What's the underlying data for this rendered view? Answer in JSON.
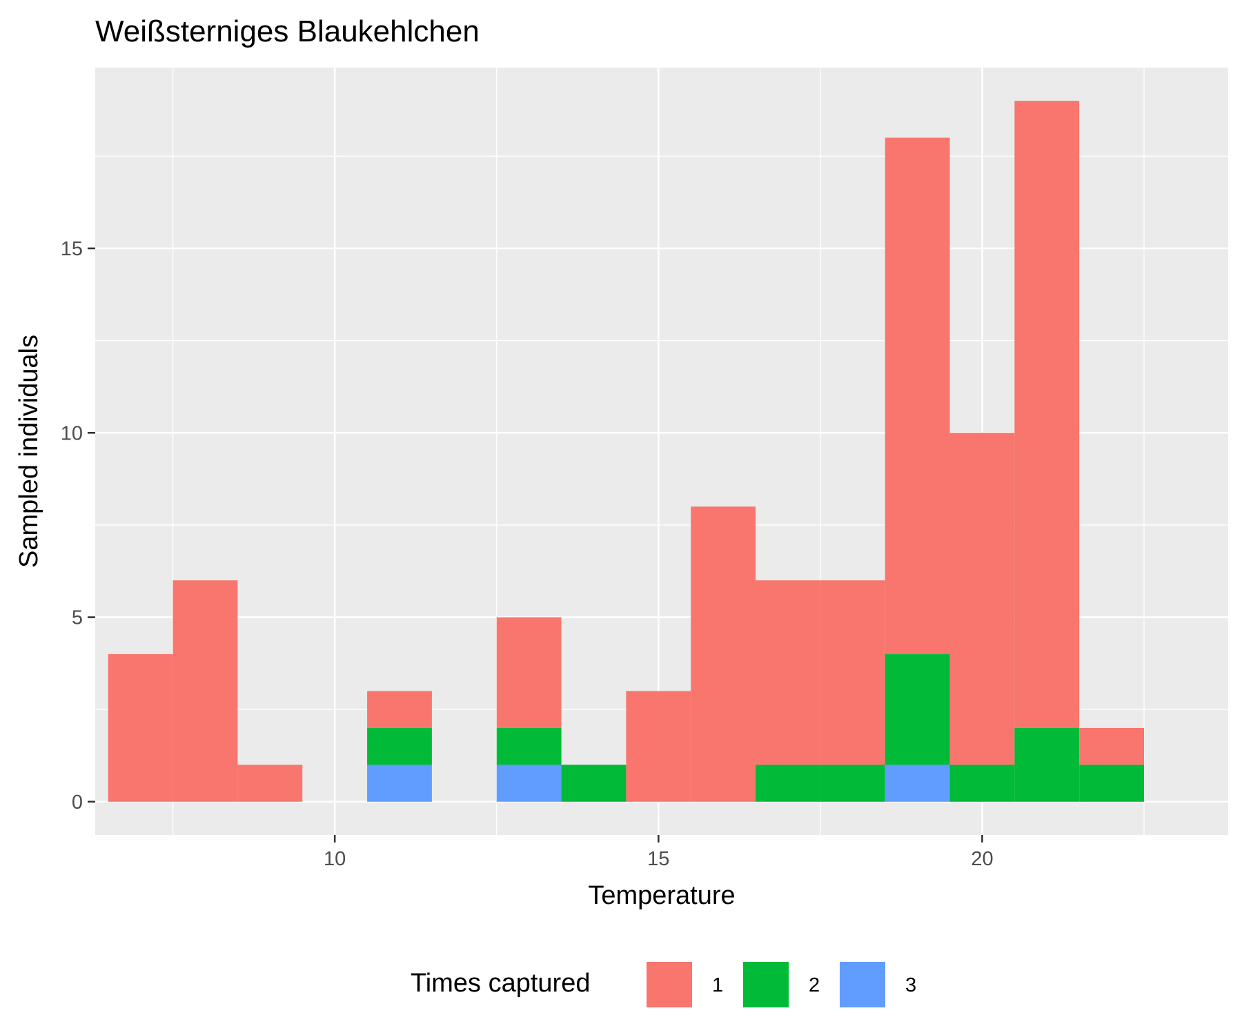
{
  "chart_data": {
    "type": "bar",
    "subtype": "stacked-histogram",
    "title": "Weißsterniges Blaukehlchen",
    "xlabel": "Temperature",
    "ylabel": "Sampled individuals",
    "xlim": [
      6.3,
      23.8
    ],
    "ylim": [
      -0.9,
      19.9
    ],
    "xticks": [
      10,
      15,
      20
    ],
    "yticks": [
      0,
      5,
      10,
      15
    ],
    "grid": true,
    "legend_position": "bottom",
    "legend_title": "Times captured",
    "bin_centers": [
      7,
      8,
      9,
      10,
      11,
      12,
      13,
      14,
      15,
      16,
      17,
      18,
      19,
      20,
      21,
      22
    ],
    "bin_width": 1,
    "series": [
      {
        "name": "3",
        "color": "#619CFF",
        "values": [
          0,
          0,
          0,
          0,
          1,
          0,
          1,
          0,
          0,
          0,
          0,
          0,
          1,
          0,
          0,
          0
        ]
      },
      {
        "name": "2",
        "color": "#00BA38",
        "values": [
          0,
          0,
          0,
          0,
          1,
          0,
          1,
          1,
          0,
          0,
          1,
          1,
          3,
          1,
          2,
          1
        ]
      },
      {
        "name": "1",
        "color": "#F8766D",
        "values": [
          4,
          6,
          1,
          0,
          1,
          0,
          3,
          0,
          3,
          8,
          5,
          5,
          14,
          9,
          17,
          1
        ]
      }
    ]
  }
}
